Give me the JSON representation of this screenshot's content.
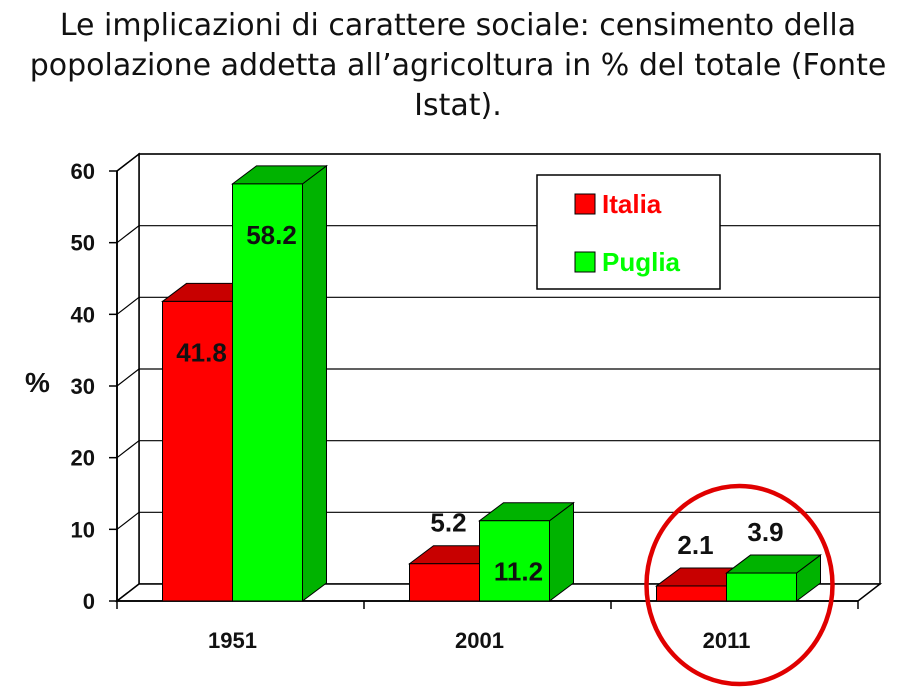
{
  "chart_data": {
    "type": "bar",
    "title": "Le implicazioni di carattere sociale: censimento della popolazione addetta all’agricoltura in % del totale (Fonte Istat).",
    "ylabel": "%",
    "xlabel": "",
    "categories": [
      "1951",
      "2001",
      "2011"
    ],
    "series": [
      {
        "name": "Italia",
        "values": [
          41.8,
          5.2,
          2.1
        ],
        "value_labels": [
          "41.8",
          "5.2",
          "2.1"
        ],
        "color": "#ff0000"
      },
      {
        "name": "Puglia",
        "values": [
          58.2,
          11.2,
          3.9
        ],
        "value_labels": [
          "58.2",
          "11.2",
          "3.9"
        ],
        "color": "#00ff00"
      }
    ],
    "ylim": [
      0,
      60
    ],
    "yticks": [
      0,
      10,
      20,
      30,
      40,
      50,
      60
    ],
    "grid": true,
    "legend": "top-right",
    "highlight": {
      "category": "2011",
      "shape": "circle",
      "color": "#e00000"
    },
    "style": "3d"
  }
}
